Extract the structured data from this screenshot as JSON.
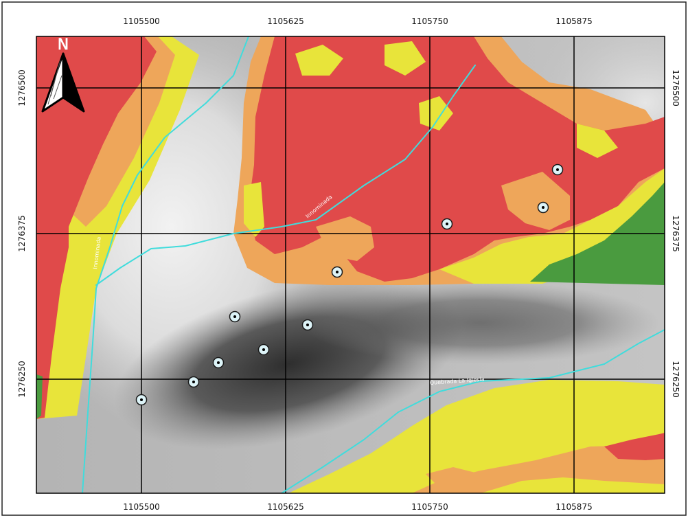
{
  "map": {
    "north_arrow": {
      "label": "N"
    },
    "x_ticks": [
      "1105500",
      "1105625",
      "1105750",
      "1105875"
    ],
    "y_ticks": [
      "1276500",
      "1276375",
      "1276250"
    ],
    "streams": [
      {
        "label": "Innominada"
      },
      {
        "label": "Innominada"
      },
      {
        "label": "Quebrada La Iglesia"
      }
    ],
    "colors": {
      "high": "#e04a4a",
      "medium": "#eea65a",
      "low": "#e8e43a",
      "very_low": "#4a9b3f",
      "stream": "#40dcdc",
      "grid": "#000000",
      "marker_fill": "#ddf4f8"
    },
    "sample_point_count": 11
  }
}
